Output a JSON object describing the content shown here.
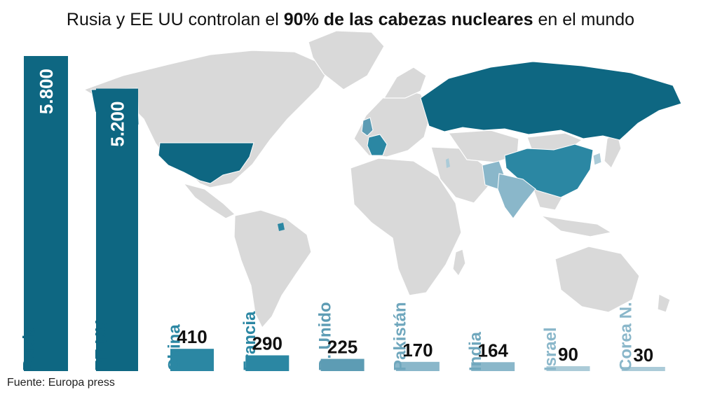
{
  "title": {
    "before": "Rusia y EE UU controlan el ",
    "bold": "90% de las cabezas nucleares",
    "after": " en el mundo"
  },
  "source": "Fuente: Europa press",
  "colors": {
    "dark": "#0e6782",
    "medium": "#2b87a3",
    "medium_light": "#5d9cb4",
    "light": "#8ab7ca",
    "lightest": "#abcbd8",
    "map_base": "#d9d9d9",
    "overlap": "#073f55"
  },
  "chart_data": {
    "type": "bar",
    "title": "Rusia y EE UU controlan el 90% de las cabezas nucleares en el mundo",
    "categories": [
      "Rusia",
      "EE UU",
      "China",
      "Francia",
      "R. Unido",
      "Pakistán",
      "India",
      "Israel",
      "Corea N."
    ],
    "values": [
      5800,
      5200,
      410,
      290,
      225,
      170,
      164,
      90,
      30
    ],
    "value_labels": [
      "5.800",
      "5.200",
      "410",
      "290",
      "225",
      "170",
      "164",
      "90",
      "30"
    ],
    "bar_colors": [
      "#0e6782",
      "#0e6782",
      "#2b87a3",
      "#2b87a3",
      "#5d9cb4",
      "#8ab7ca",
      "#8ab7ca",
      "#abcbd8",
      "#abcbd8"
    ],
    "label_colors": [
      "#0e6782",
      "#0e6782",
      "#2b87a3",
      "#2b87a3",
      "#5d9cb4",
      "#6fa7bd",
      "#6fa7bd",
      "#8ab7ca",
      "#8ab7ca"
    ],
    "ylim": [
      0,
      5800
    ],
    "grid": false,
    "legend": "none"
  }
}
